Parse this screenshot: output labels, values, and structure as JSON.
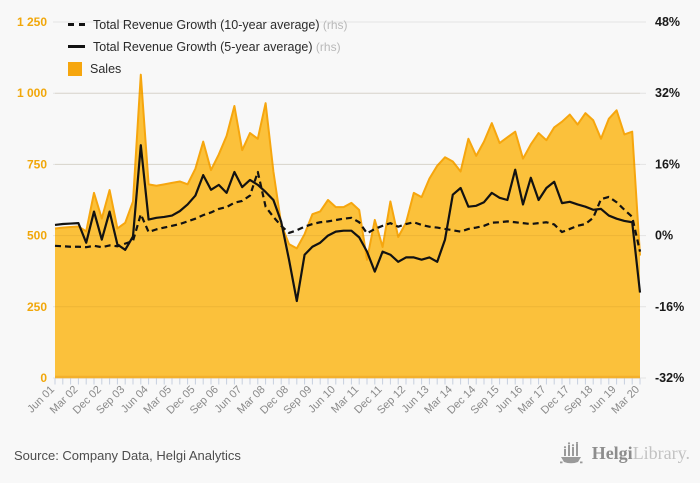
{
  "legend": {
    "items": [
      {
        "label": "Total Revenue Growth (10-year average)",
        "suffix": "(rhs)",
        "marker": "dashed-line"
      },
      {
        "label": "Total Revenue Growth (5-year average)",
        "suffix": "(rhs)",
        "marker": "solid-line"
      },
      {
        "label": "Sales",
        "suffix": "",
        "marker": "orange-square"
      }
    ]
  },
  "footer": {
    "source_text": "Source: Company Data, Helgi Analytics",
    "logo_primary": "Helgi",
    "logo_secondary": "Library.",
    "logo_icon": "ship-bar-chart-icon"
  },
  "colors": {
    "background": "#f8f8f8",
    "area_fill": "#FBC13B",
    "area_stroke": "#F6A60E",
    "baseline": "#F3B02C",
    "line_color": "#121212",
    "left_axis_label": "#F1A70A",
    "right_axis_label": "#191919",
    "x_axis_label": "#8a8a8a",
    "gridline": "#e3e3e3",
    "tick_mark": "#c7d0df"
  },
  "chart_data": {
    "type": "area-line-combo",
    "n_points": 76,
    "x_tick_interval": 3,
    "x_tick_labels": [
      "Jun 01",
      "Mar 02",
      "Dec 02",
      "Sep 03",
      "Jun 04",
      "Mar 05",
      "Dec 05",
      "Sep 06",
      "Jun 07",
      "Mar 08",
      "Dec 08",
      "Sep 09",
      "Jun 10",
      "Mar 11",
      "Dec 11",
      "Sep 12",
      "Jun 13",
      "Mar 14",
      "Dec 14",
      "Sep 15",
      "Jun 16",
      "Mar 17",
      "Dec 17",
      "Sep 18",
      "Jun 19",
      "Mar 20"
    ],
    "left_axis": {
      "min": 0,
      "max": 1250,
      "tick_labels": [
        "0",
        "250",
        "500",
        "750",
        "1 000",
        "1 250"
      ]
    },
    "right_axis": {
      "min": -32,
      "max": 48,
      "tick_labels": [
        "-32%",
        "-16%",
        "0%",
        "16%",
        "32%",
        "48%"
      ]
    },
    "grid": true,
    "legend_position": "top-left-inside",
    "series": [
      {
        "name": "Sales",
        "type": "area",
        "axis": "left",
        "values": [
          525,
          528,
          530,
          532,
          515,
          650,
          560,
          660,
          525,
          545,
          620,
          1065,
          680,
          675,
          680,
          685,
          690,
          680,
          735,
          830,
          730,
          785,
          850,
          955,
          800,
          860,
          840,
          965,
          725,
          540,
          470,
          455,
          505,
          575,
          585,
          625,
          600,
          600,
          615,
          590,
          415,
          555,
          460,
          620,
          495,
          545,
          650,
          635,
          700,
          745,
          775,
          760,
          725,
          840,
          780,
          830,
          895,
          825,
          845,
          865,
          770,
          820,
          860,
          835,
          880,
          900,
          925,
          890,
          930,
          905,
          840,
          910,
          940,
          855,
          865,
          430
        ]
      },
      {
        "name": "Total Revenue Growth (10-year average)",
        "type": "line",
        "style": "dashed",
        "axis": "right",
        "unit": "%",
        "values": [
          -2.3,
          -2.4,
          -2.5,
          -2.5,
          -2.6,
          -2.3,
          -2.6,
          -2.2,
          -2.4,
          -1.8,
          -1.2,
          4.8,
          0.8,
          1.4,
          1.8,
          2.2,
          2.6,
          3.2,
          3.8,
          4.6,
          5.2,
          6.0,
          6.4,
          7.4,
          7.8,
          9.0,
          14.3,
          6.5,
          4.2,
          2.2,
          0.6,
          1.2,
          2.0,
          2.6,
          3.0,
          3.2,
          3.5,
          3.8,
          4.0,
          3.0,
          0.5,
          1.5,
          2.2,
          2.8,
          2.0,
          2.6,
          3.0,
          2.4,
          2.0,
          1.8,
          1.5,
          1.2,
          0.9,
          1.5,
          1.8,
          2.2,
          2.9,
          3.0,
          3.2,
          3.0,
          2.8,
          2.6,
          2.8,
          3.0,
          2.5,
          0.8,
          1.5,
          2.2,
          2.6,
          4.0,
          8.2,
          8.7,
          7.5,
          5.8,
          4.2,
          -3.6
        ]
      },
      {
        "name": "Total Revenue Growth (5-year average)",
        "type": "line",
        "style": "solid",
        "axis": "right",
        "unit": "%",
        "values": [
          2.4,
          2.6,
          2.7,
          2.8,
          -1.6,
          5.4,
          -0.9,
          5.4,
          -2.0,
          -3.2,
          -0.2,
          20.3,
          3.6,
          4.0,
          4.2,
          4.5,
          5.5,
          7.0,
          9.0,
          13.6,
          10.3,
          11.4,
          9.6,
          14.3,
          10.9,
          12.5,
          11.4,
          9.8,
          8.0,
          3.1,
          -5.4,
          -14.7,
          -4.3,
          -2.5,
          -1.6,
          0.0,
          0.9,
          1.1,
          1.1,
          -0.4,
          -3.6,
          -8.1,
          -3.6,
          -4.3,
          -5.9,
          -4.9,
          -4.9,
          -5.4,
          -4.9,
          -5.9,
          -0.9,
          9.2,
          10.7,
          6.5,
          6.7,
          7.5,
          9.6,
          8.5,
          8.0,
          14.8,
          7.0,
          13.0,
          8.0,
          10.7,
          12.1,
          7.3,
          7.6,
          7.0,
          6.5,
          5.8,
          6.0,
          4.5,
          3.8,
          3.3,
          3.0,
          -12.8
        ]
      }
    ]
  }
}
